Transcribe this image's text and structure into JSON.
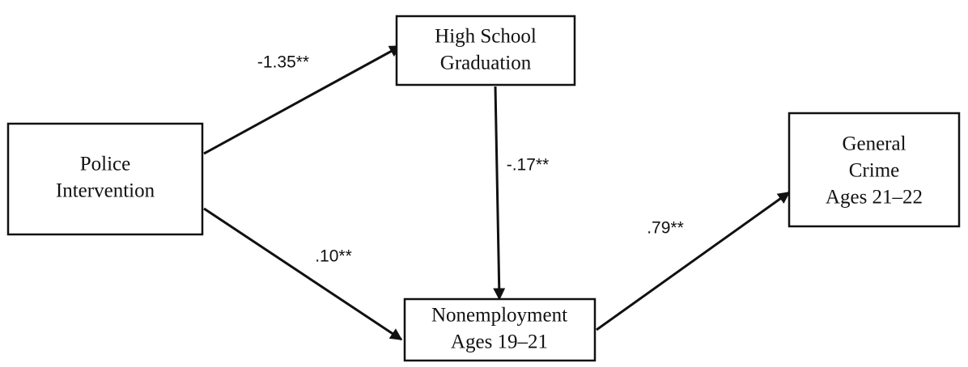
{
  "nodes": [
    {
      "lines": [
        "Police",
        "Intervention"
      ]
    },
    {
      "lines": [
        "High School",
        "Graduation"
      ]
    },
    {
      "lines": [
        "Nonemployment",
        "Ages 19–21"
      ]
    },
    {
      "lines": [
        "General",
        "Crime",
        "Ages 21–22"
      ]
    }
  ],
  "edges": [
    {
      "label": "-1.35**"
    },
    {
      "label": ".10**"
    },
    {
      "label": "-.17**"
    },
    {
      "label": ".79**"
    }
  ]
}
